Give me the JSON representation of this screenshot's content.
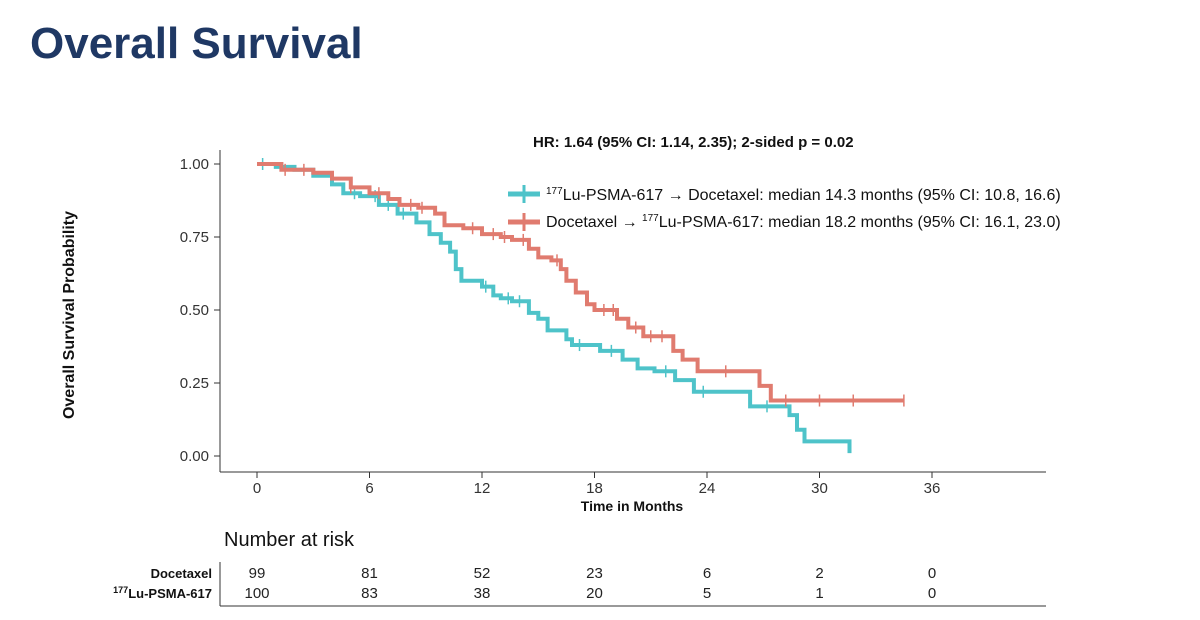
{
  "slide": {
    "title": "Overall Survival"
  },
  "chart_data": {
    "type": "line",
    "title": "Overall Survival",
    "hr_text": "HR: 1.64 (95% CI: 1.14, 2.35); 2-sided p = 0.02",
    "xlabel": "Time in Months",
    "ylabel": "Overall Survival Probability",
    "xlim": [
      0,
      37
    ],
    "ylim": [
      0,
      1.05
    ],
    "x_ticks": [
      "0",
      "6",
      "12",
      "18",
      "24",
      "30",
      "36"
    ],
    "y_ticks": [
      "0.00",
      "0.25",
      "0.50",
      "0.75",
      "1.00"
    ],
    "legend_position": "top-right",
    "series": [
      {
        "name_prefix": "177",
        "name": "Lu-PSMA-617 → Docetaxel: median 14.3 months (95% CI: 10.8, 16.6)",
        "color": "#4ec3c9",
        "step_points": [
          [
            0,
            1.0
          ],
          [
            1,
            0.99
          ],
          [
            2,
            0.98
          ],
          [
            3,
            0.96
          ],
          [
            4,
            0.93
          ],
          [
            4.6,
            0.9
          ],
          [
            5.5,
            0.89
          ],
          [
            6.5,
            0.86
          ],
          [
            7.5,
            0.83
          ],
          [
            8.5,
            0.8
          ],
          [
            9.2,
            0.76
          ],
          [
            9.8,
            0.73
          ],
          [
            10.3,
            0.7
          ],
          [
            10.6,
            0.64
          ],
          [
            10.9,
            0.6
          ],
          [
            12,
            0.58
          ],
          [
            12.6,
            0.55
          ],
          [
            13,
            0.54
          ],
          [
            13.6,
            0.53
          ],
          [
            14.5,
            0.49
          ],
          [
            15,
            0.47
          ],
          [
            15.5,
            0.43
          ],
          [
            16.5,
            0.4
          ],
          [
            16.8,
            0.38
          ],
          [
            18.3,
            0.36
          ],
          [
            19.5,
            0.33
          ],
          [
            20.3,
            0.3
          ],
          [
            21.2,
            0.29
          ],
          [
            22.3,
            0.26
          ],
          [
            23.3,
            0.22
          ],
          [
            26.3,
            0.17
          ],
          [
            28.4,
            0.14
          ],
          [
            28.8,
            0.09
          ],
          [
            29.2,
            0.05
          ],
          [
            31.6,
            0.01
          ]
        ],
        "censor_x": [
          0.3,
          5.2,
          6.3,
          7.0,
          7.8,
          12.2,
          13.4,
          14.0,
          17.2,
          18.9,
          21.8,
          23.8,
          27.2
        ]
      },
      {
        "name_prefix": "",
        "name": "Docetaxel → 177Lu-PSMA-617: median 18.2 months (95% CI: 16.1, 23.0)",
        "name_pre": "Docetaxel → ",
        "name_sup": "177",
        "name_post": "Lu-PSMA-617: median 18.2 months (95% CI: 16.1, 23.0)",
        "color": "#e07b6f",
        "step_points": [
          [
            0,
            1.0
          ],
          [
            1.3,
            0.98
          ],
          [
            3,
            0.97
          ],
          [
            4,
            0.95
          ],
          [
            5,
            0.92
          ],
          [
            6,
            0.9
          ],
          [
            7,
            0.88
          ],
          [
            7.6,
            0.86
          ],
          [
            8.6,
            0.85
          ],
          [
            9.5,
            0.83
          ],
          [
            10,
            0.79
          ],
          [
            11,
            0.78
          ],
          [
            12,
            0.76
          ],
          [
            13,
            0.75
          ],
          [
            13.6,
            0.74
          ],
          [
            14.5,
            0.71
          ],
          [
            15,
            0.68
          ],
          [
            15.7,
            0.67
          ],
          [
            16.2,
            0.64
          ],
          [
            16.5,
            0.6
          ],
          [
            17,
            0.56
          ],
          [
            17.6,
            0.52
          ],
          [
            18,
            0.5
          ],
          [
            19.2,
            0.47
          ],
          [
            19.8,
            0.44
          ],
          [
            20.6,
            0.41
          ],
          [
            22.2,
            0.36
          ],
          [
            22.7,
            0.33
          ],
          [
            23.5,
            0.29
          ],
          [
            26.8,
            0.24
          ],
          [
            27.4,
            0.19
          ],
          [
            34.5,
            0.19
          ]
        ],
        "censor_x": [
          1.5,
          2.5,
          5.0,
          6.5,
          8.2,
          8.8,
          11.5,
          12.6,
          13.2,
          14.2,
          16.0,
          18.5,
          19.0,
          20.2,
          21.0,
          21.6,
          25.0,
          28.2,
          30.0,
          31.8,
          34.5
        ]
      }
    ],
    "risk_table": {
      "title": "Number at risk",
      "times": [
        "0",
        "6",
        "12",
        "18",
        "24",
        "30",
        "36"
      ],
      "rows": [
        {
          "label_prefix": "",
          "label": "Docetaxel",
          "values": [
            "99",
            "81",
            "52",
            "23",
            "6",
            "2",
            "0"
          ]
        },
        {
          "label_prefix": "177",
          "label": "Lu-PSMA-617",
          "values": [
            "100",
            "83",
            "38",
            "20",
            "5",
            "1",
            "0"
          ]
        }
      ]
    }
  }
}
